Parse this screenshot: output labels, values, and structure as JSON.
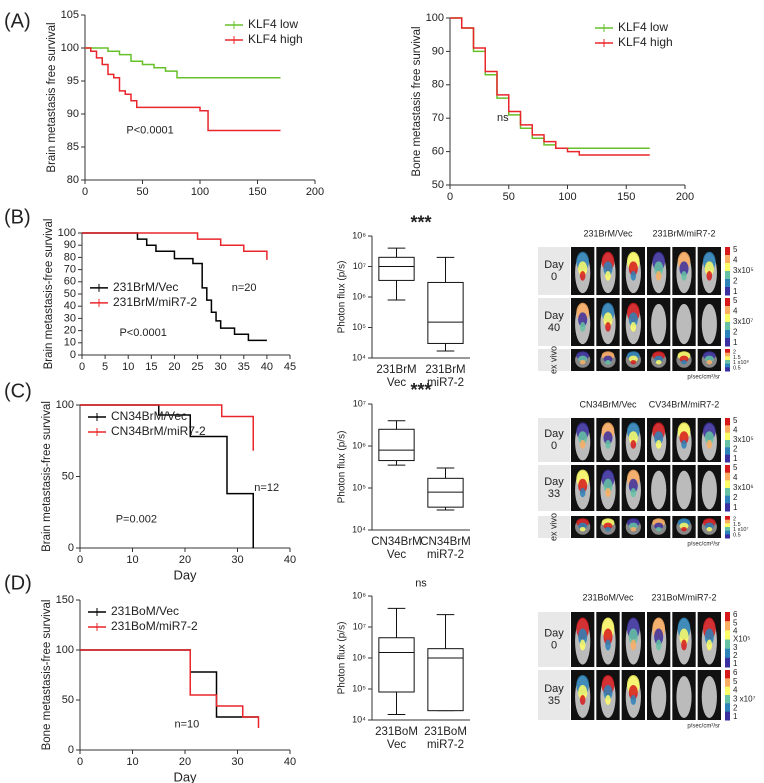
{
  "panel_labels": [
    "(A)",
    "(B)",
    "(C)",
    "(D)"
  ],
  "chart_data": [
    {
      "type": "step",
      "ylabel": "Brain metastasis free survival",
      "annotations": [
        "P<0.0001"
      ],
      "legend": "upper right",
      "xlim": [
        0,
        200
      ],
      "xticks": [
        0,
        50,
        100,
        150,
        200
      ],
      "ylim": [
        80,
        105
      ],
      "yticks": [
        80,
        85,
        90,
        95,
        100,
        105
      ],
      "series": [
        {
          "name": "KLF4 low",
          "color": "#66c02a",
          "x": [
            0,
            10,
            20,
            30,
            40,
            50,
            60,
            70,
            80,
            100,
            170
          ],
          "values": [
            100,
            100,
            99.5,
            99,
            98,
            97.5,
            97,
            96.5,
            95.5,
            95.5,
            95.5
          ]
        },
        {
          "name": "KLF4 high",
          "color": "#e8262b",
          "x": [
            0,
            5,
            10,
            15,
            20,
            25,
            30,
            35,
            40,
            45,
            50,
            80,
            100,
            107,
            170
          ],
          "values": [
            100,
            99.5,
            98.5,
            97.5,
            96,
            95.5,
            93.5,
            93,
            92,
            91,
            91,
            91,
            90.5,
            87.5,
            87.5
          ]
        }
      ]
    },
    {
      "type": "step",
      "ylabel": "Bone metastasis free survival",
      "annotations": [
        "ns"
      ],
      "legend": "upper right",
      "xlim": [
        0,
        200
      ],
      "xticks": [
        0,
        50,
        100,
        150,
        200
      ],
      "ylim": [
        50,
        100
      ],
      "yticks": [
        50,
        60,
        70,
        80,
        90,
        100
      ],
      "series": [
        {
          "name": "KLF4 low",
          "color": "#66c02a",
          "x": [
            0,
            10,
            20,
            30,
            40,
            50,
            60,
            70,
            80,
            90,
            100,
            110,
            170
          ],
          "values": [
            100,
            97,
            90,
            83,
            76,
            71,
            67,
            64,
            62,
            61,
            61,
            61,
            61
          ]
        },
        {
          "name": "KLF4 high",
          "color": "#e8262b",
          "x": [
            0,
            10,
            20,
            30,
            40,
            50,
            60,
            70,
            80,
            90,
            100,
            110,
            170
          ],
          "values": [
            100,
            97,
            91,
            84,
            77,
            72,
            68,
            65,
            63,
            61,
            60,
            59,
            59
          ]
        }
      ]
    },
    {
      "type": "step",
      "ylabel": "Brain metastasis-free survival",
      "annotations": [
        "n=20",
        "P<0.0001"
      ],
      "legend": "middle left",
      "xlim": [
        0,
        45
      ],
      "xticks": [
        0,
        5,
        10,
        15,
        20,
        25,
        30,
        35,
        40,
        45
      ],
      "ylim": [
        0,
        100
      ],
      "yticks": [
        0,
        10,
        20,
        30,
        40,
        50,
        60,
        70,
        80,
        90,
        100
      ],
      "series": [
        {
          "name": "231BrM/Vec",
          "color": "#000000",
          "x": [
            0,
            12,
            14,
            16,
            20,
            24,
            26,
            27,
            28,
            29,
            30,
            33,
            36,
            40
          ],
          "values": [
            100,
            95,
            90,
            85,
            79,
            75,
            55,
            45,
            35,
            28,
            22,
            17,
            12,
            12
          ]
        },
        {
          "name": "231BrM/miR7-2",
          "color": "#e8262b",
          "x": [
            0,
            25,
            30,
            35,
            40
          ],
          "values": [
            100,
            95,
            90,
            85,
            78
          ]
        }
      ]
    },
    {
      "type": "box",
      "ylabel": "Photon flux (p/s)",
      "annotations": [
        "***"
      ],
      "log_scale": true,
      "ylim": [
        10000,
        100000000
      ],
      "yticks": [
        {
          "value": 10000,
          "label": "10⁴"
        },
        {
          "value": 100000,
          "label": "10⁵"
        },
        {
          "value": 1000000,
          "label": "10⁶"
        },
        {
          "value": 10000000,
          "label": "10⁷"
        },
        {
          "value": 100000000,
          "label": "10⁸"
        }
      ],
      "categories": [
        [
          "231BrM",
          "Vec"
        ],
        [
          "231BrM",
          "miR7-2"
        ]
      ],
      "boxes": [
        {
          "whislo": 800000,
          "q1": 3500000,
          "med": 10000000,
          "q3": 20000000,
          "whishi": 40000000
        },
        {
          "whislo": 17000,
          "q1": 30000,
          "med": 150000,
          "q3": 3000000,
          "whishi": 20000000
        }
      ]
    },
    {
      "type": "step",
      "ylabel": "Brain metastasis-free survival",
      "xlabel": "Day",
      "annotations": [
        "n=12",
        "P=0.002"
      ],
      "legend": "upper left",
      "xlim": [
        0,
        40
      ],
      "xticks": [
        0,
        10,
        20,
        30,
        40
      ],
      "ylim": [
        0,
        100
      ],
      "yticks": [
        0,
        50,
        100
      ],
      "series": [
        {
          "name": "CN34BrM/Vec",
          "color": "#000000",
          "x": [
            0,
            15,
            21,
            28,
            33
          ],
          "values": [
            100,
            93,
            78,
            38,
            0
          ]
        },
        {
          "name": "CN34BrM/miR7-2",
          "color": "#e8262b",
          "x": [
            0,
            27,
            33
          ],
          "values": [
            100,
            92,
            68
          ]
        }
      ]
    },
    {
      "type": "box",
      "ylabel": "Photon flux (p/s)",
      "annotations": [
        "***"
      ],
      "log_scale": true,
      "ylim": [
        10000,
        10000000
      ],
      "yticks": [
        {
          "value": 10000,
          "label": "10⁴"
        },
        {
          "value": 100000,
          "label": "10⁵"
        },
        {
          "value": 1000000,
          "label": "10⁶"
        },
        {
          "value": 10000000,
          "label": "10⁷"
        }
      ],
      "categories": [
        [
          "CN34BrM",
          "Vec"
        ],
        [
          "CN34BrM",
          "miR7-2"
        ]
      ],
      "boxes": [
        {
          "whislo": 350000,
          "q1": 450000,
          "med": 800000,
          "q3": 2500000,
          "whishi": 4000000
        },
        {
          "whislo": 30000,
          "q1": 35000,
          "med": 80000,
          "q3": 170000,
          "whishi": 300000
        }
      ]
    },
    {
      "type": "step",
      "ylabel": "Bone metastasis-free survival",
      "xlabel": "Day",
      "annotations": [
        "n=10"
      ],
      "legend": "upper left",
      "xlim": [
        0,
        40
      ],
      "xticks": [
        0,
        10,
        20,
        30,
        40
      ],
      "ylim": [
        0,
        150
      ],
      "yticks": [
        0,
        50,
        100,
        150
      ],
      "series": [
        {
          "name": "231BoM/Vec",
          "color": "#000000",
          "x": [
            0,
            21,
            26,
            34
          ],
          "values": [
            100,
            78,
            33,
            33
          ]
        },
        {
          "name": "231BoM/miR7-2",
          "color": "#e8262b",
          "x": [
            0,
            21,
            26,
            31,
            34
          ],
          "values": [
            100,
            55,
            44,
            33,
            22
          ]
        }
      ]
    },
    {
      "type": "box",
      "ylabel": "Photon flux (p/s)",
      "annotations": [
        "ns"
      ],
      "log_scale": true,
      "ylim": [
        10000,
        100000000
      ],
      "yticks": [
        {
          "value": 10000,
          "label": "10⁴"
        },
        {
          "value": 100000,
          "label": "10⁵"
        },
        {
          "value": 1000000,
          "label": "10⁶"
        },
        {
          "value": 10000000,
          "label": "10⁷"
        },
        {
          "value": 100000000,
          "label": "10⁸"
        }
      ],
      "categories": [
        [
          "231BoM",
          "Vec"
        ],
        [
          "231BoM",
          "miR7-2"
        ]
      ],
      "boxes": [
        {
          "whislo": 15000,
          "q1": 80000,
          "med": 1500000,
          "q3": 4500000,
          "whishi": 40000000
        },
        {
          "whislo": 20000,
          "q1": 20000,
          "med": 1000000,
          "q3": 2000000,
          "whishi": 25000000
        }
      ]
    }
  ],
  "imaging": [
    {
      "headers": [
        "231BrM/Vec",
        "231BrM/miR7-2"
      ],
      "unit": "p/sec/cm²/sr",
      "rows": [
        {
          "label": [
            "Day",
            "0"
          ],
          "colorbar": [
            "5",
            "4",
            "3x10⁵",
            "2",
            "1"
          ]
        },
        {
          "label": [
            "Day",
            "40"
          ],
          "colorbar": [
            "5",
            "4",
            "3x10⁷",
            "2",
            "1"
          ]
        },
        {
          "label": [
            "ex vivo"
          ],
          "colorbar": [
            "2",
            "1.5",
            "1 x10⁸",
            "0.5"
          ]
        }
      ]
    },
    {
      "headers": [
        "CN34BrM/Vec",
        "CV34BrM/miR7-2"
      ],
      "unit": "p/sec/cm²/sr",
      "rows": [
        {
          "label": [
            "Day",
            "0"
          ],
          "colorbar": [
            "5",
            "4",
            "3x10⁵",
            "2",
            "1"
          ]
        },
        {
          "label": [
            "Day",
            "33"
          ],
          "colorbar": [
            "5",
            "4",
            "3x10⁶",
            "2",
            "1"
          ]
        },
        {
          "label": [
            "ex vivo"
          ],
          "colorbar": [
            "2",
            "1.5",
            "1 x10⁷",
            "0.5"
          ]
        }
      ]
    },
    {
      "headers": [
        "231BoM/Vec",
        "231BoM/miR7-2"
      ],
      "unit": "p/sec/cm²/sr",
      "rows": [
        {
          "label": [
            "Day",
            "0"
          ],
          "colorbar": [
            "6",
            "5",
            "4",
            "X10⁵",
            "3",
            "2",
            "1"
          ]
        },
        {
          "label": [
            "Day",
            "35"
          ],
          "colorbar": [
            "6",
            "5",
            "4",
            "3 x10⁷",
            "2",
            "1"
          ]
        }
      ]
    }
  ]
}
